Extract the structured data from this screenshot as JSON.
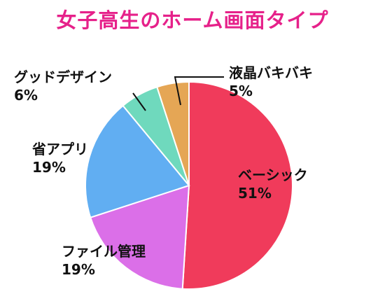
{
  "chart_data": {
    "type": "pie",
    "title": "女子高生のホーム画面タイプ",
    "start_angle": "12 o'clock",
    "direction": "clockwise",
    "slices": [
      {
        "label": "ベーシック",
        "value": 51,
        "value_label": "51%",
        "color": "#f03b5b"
      },
      {
        "label": "ファイル管理",
        "value": 19,
        "value_label": "19%",
        "color": "#db6fe8"
      },
      {
        "label": "省アプリ",
        "value": 19,
        "value_label": "19%",
        "color": "#61aef2"
      },
      {
        "label": "グッドデザイン",
        "value": 6,
        "value_label": "6%",
        "color": "#6fd9bd"
      },
      {
        "label": "液晶バキバキ",
        "value": 5,
        "value_label": "5%",
        "color": "#e5a655"
      }
    ]
  }
}
